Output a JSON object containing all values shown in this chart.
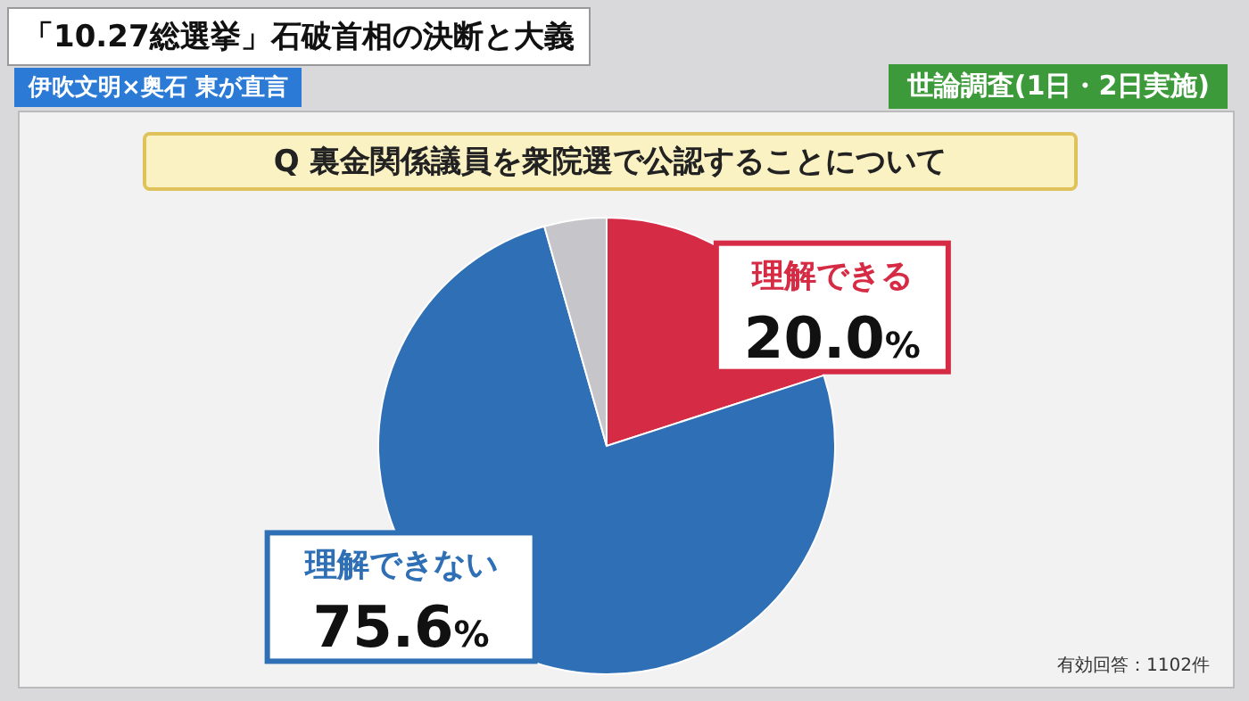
{
  "chart_data": {
    "type": "pie",
    "title": "「10.27総選挙」石破首相の決断と大義",
    "subtitle": "Q 裏金関係議員を衆院選で公認することについて",
    "annotations": [
      "伊吹文明×奥石 東が直言",
      "世論調査(1日・2日実施)",
      "有効回答：1102件"
    ],
    "categories": [
      "理解できる",
      "理解できない",
      null
    ],
    "values": [
      20.0,
      75.6,
      4.4
    ],
    "colors": [
      "#d62b45",
      "#2e6fb5",
      "#c6c6ca"
    ],
    "value_labels": [
      "20.0%",
      "75.6%",
      null
    ]
  }
}
